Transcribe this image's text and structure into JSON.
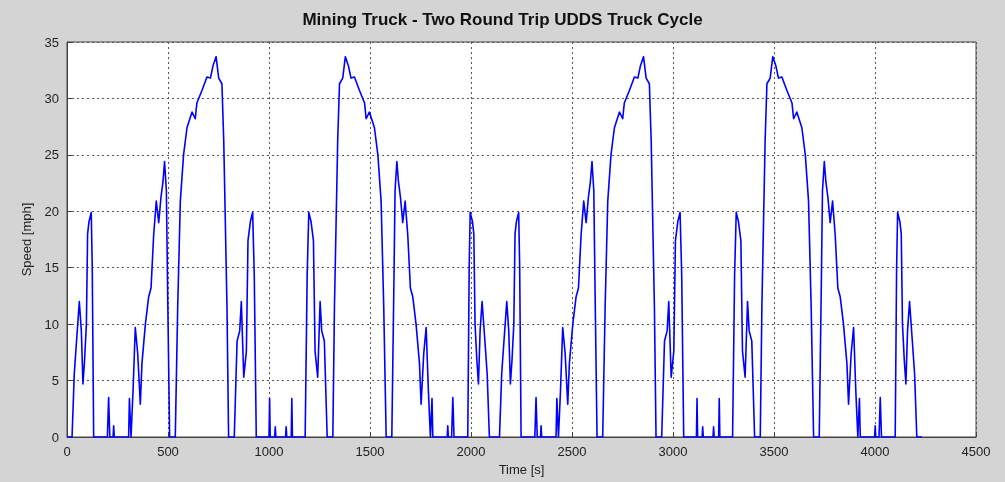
{
  "chart_data": {
    "type": "line",
    "title": "Mining Truck - Two Round Trip UDDS Truck Cycle",
    "xlabel": "Time [s]",
    "ylabel": "Speed [mph]",
    "xlim": [
      0,
      4500
    ],
    "xticks": [
      0,
      500,
      1000,
      1500,
      2000,
      2500,
      3000,
      3500,
      4000,
      4500
    ],
    "ylim": [
      0,
      35
    ],
    "yticks": [
      0,
      5,
      10,
      15,
      20,
      25,
      30,
      35
    ],
    "grid": true,
    "marker": "none",
    "line_style": "solid",
    "series": [
      {
        "color": "#0000ff",
        "x": [
          0,
          25,
          36,
          46,
          61,
          71,
          79,
          87,
          96,
          102,
          109,
          120,
          125,
          132,
          200,
          206,
          212,
          228,
          231,
          234,
          305,
          309,
          317,
          327,
          338,
          350,
          363,
          371,
          388,
          404,
          416,
          429,
          442,
          454,
          465,
          475,
          483,
          492,
          498,
          508,
          536,
          548,
          561,
          577,
          594,
          619,
          635,
          643,
          668,
          693,
          710,
          723,
          738,
          751,
          767,
          776,
          792,
          800,
          828,
          842,
          855,
          863,
          875,
          888,
          896,
          908,
          919,
          927,
          937,
          1000,
          1003,
          1006,
          1028,
          1031,
          1034,
          1058,
          1082,
          1085,
          1088,
          1110,
          1113,
          1116,
          1179,
          1189,
          1197,
          1208,
          1220,
          1228,
          1241,
          1253,
          1261,
          1274,
          1288,
          1316,
          1324,
          1340,
          1349,
          1365,
          1378,
          1393,
          1406,
          1423,
          1448,
          1473,
          1481,
          1497,
          1522,
          1539,
          1555,
          1568,
          1580,
          1608,
          1618,
          1624,
          1633,
          1641,
          1651,
          1662,
          1674,
          1687,
          1700,
          1712,
          1728,
          1745,
          1753,
          1766,
          1778,
          1789,
          1799,
          1807,
          1811,
          1882,
          1885,
          1888,
          1904,
          1910,
          1916,
          1984,
          1991,
          1996,
          2007,
          2014,
          2020,
          2029,
          2037,
          2045,
          2055,
          2070,
          2080,
          2091,
          2116,
          2141,
          2152,
          2162,
          2177,
          2187,
          2195,
          2203,
          2212,
          2218,
          2225,
          2236,
          2241,
          2248,
          2316,
          2322,
          2328,
          2344,
          2347,
          2350,
          2421,
          2425,
          2433,
          2443,
          2454,
          2466,
          2479,
          2487,
          2504,
          2520,
          2532,
          2545,
          2558,
          2570,
          2581,
          2591,
          2599,
          2608,
          2614,
          2624,
          2652,
          2664,
          2677,
          2693,
          2710,
          2735,
          2751,
          2759,
          2784,
          2809,
          2826,
          2839,
          2854,
          2867,
          2883,
          2892,
          2908,
          2916,
          2944,
          2958,
          2971,
          2979,
          2991,
          3004,
          3012,
          3024,
          3035,
          3043,
          3053,
          3116,
          3119,
          3122,
          3144,
          3147,
          3150,
          3174,
          3198,
          3201,
          3204,
          3226,
          3229,
          3232,
          3295,
          3305,
          3313,
          3324,
          3336,
          3344,
          3357,
          3369,
          3377,
          3390,
          3404,
          3432,
          3440,
          3456,
          3465,
          3481,
          3494,
          3509,
          3522,
          3539,
          3564,
          3589,
          3597,
          3613,
          3638,
          3655,
          3671,
          3684,
          3696,
          3724,
          3734,
          3740,
          3749,
          3757,
          3767,
          3778,
          3790,
          3803,
          3816,
          3828,
          3844,
          3861,
          3869,
          3882,
          3894,
          3905,
          3915,
          3923,
          3927,
          3998,
          4001,
          4004,
          4020,
          4026,
          4032,
          4100,
          4107,
          4112,
          4123,
          4130,
          4136,
          4145,
          4153,
          4161,
          4171,
          4186,
          4196,
          4207,
          4232
        ],
        "values": [
          0,
          0,
          5.6,
          8.2,
          12,
          9.4,
          4.7,
          6.8,
          10,
          18,
          19.1,
          19.9,
          15,
          0,
          0,
          3.5,
          0,
          0,
          1,
          0,
          0,
          3.4,
          0,
          4.1,
          9.7,
          7.4,
          2.9,
          6.5,
          10,
          12.4,
          13.2,
          17.9,
          20.9,
          19,
          21.2,
          22.6,
          24.4,
          21.8,
          13.2,
          0,
          0,
          11.5,
          20.9,
          25,
          27.4,
          28.8,
          28.2,
          29.6,
          30.7,
          31.9,
          31.8,
          32.9,
          33.7,
          31.8,
          31.3,
          26.2,
          11.5,
          0,
          0,
          8.5,
          9.4,
          12,
          5.3,
          7.6,
          17.4,
          19.1,
          19.9,
          14.4,
          0,
          0,
          3.4,
          0,
          0,
          0.9,
          0,
          0,
          0,
          0.9,
          0,
          0,
          3.4,
          0,
          0,
          14.4,
          19.9,
          19.1,
          17.4,
          7.6,
          5.3,
          12,
          9.4,
          8.5,
          0,
          0,
          11.5,
          26.2,
          31.3,
          31.8,
          33.7,
          32.9,
          31.8,
          31.9,
          30.7,
          29.6,
          28.2,
          28.8,
          27.4,
          25,
          20.9,
          11.5,
          0,
          0,
          13.2,
          21.8,
          24.4,
          22.6,
          21.2,
          19,
          20.9,
          17.9,
          13.2,
          12.4,
          10,
          6.5,
          2.9,
          7.4,
          9.7,
          4.1,
          0,
          3.4,
          0,
          0,
          1,
          0,
          0,
          3.5,
          0,
          0,
          15,
          19.9,
          19.1,
          18,
          10,
          6.8,
          4.7,
          9.4,
          12,
          8.2,
          5.6,
          0,
          0,
          0,
          5.6,
          8.2,
          12,
          9.4,
          4.7,
          6.8,
          10,
          18,
          19.1,
          19.9,
          15,
          0,
          0,
          3.5,
          0,
          0,
          1,
          0,
          0,
          3.4,
          0,
          4.1,
          9.7,
          7.4,
          2.9,
          6.5,
          10,
          12.4,
          13.2,
          17.9,
          20.9,
          19,
          21.2,
          22.6,
          24.4,
          21.8,
          13.2,
          0,
          0,
          11.5,
          20.9,
          25,
          27.4,
          28.8,
          28.2,
          29.6,
          30.7,
          31.9,
          31.8,
          32.9,
          33.7,
          31.8,
          31.3,
          26.2,
          11.5,
          0,
          0,
          8.5,
          9.4,
          12,
          5.3,
          7.6,
          17.4,
          19.1,
          19.9,
          14.4,
          0,
          0,
          3.4,
          0,
          0,
          0.9,
          0,
          0,
          0,
          0.9,
          0,
          0,
          3.4,
          0,
          0,
          14.4,
          19.9,
          19.1,
          17.4,
          7.6,
          5.3,
          12,
          9.4,
          8.5,
          0,
          0,
          11.5,
          26.2,
          31.3,
          31.8,
          33.7,
          32.9,
          31.8,
          31.9,
          30.7,
          29.6,
          28.2,
          28.8,
          27.4,
          25,
          20.9,
          11.5,
          0,
          0,
          13.2,
          21.8,
          24.4,
          22.6,
          21.2,
          19,
          20.9,
          17.9,
          13.2,
          12.4,
          10,
          6.5,
          2.9,
          7.4,
          9.7,
          4.1,
          0,
          3.4,
          0,
          0,
          1,
          0,
          0,
          3.5,
          0,
          0,
          15,
          19.9,
          19.1,
          18,
          10,
          6.8,
          4.7,
          9.4,
          12,
          8.2,
          5.6,
          0,
          0
        ]
      }
    ]
  }
}
